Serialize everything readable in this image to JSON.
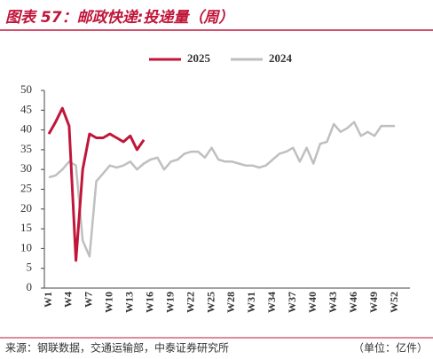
{
  "chart_data": {
    "type": "line",
    "title": "图表 57：邮政快递:投递量（周）",
    "categories": [
      "W1",
      null,
      null,
      "W4",
      null,
      null,
      "W7",
      null,
      null,
      "W10",
      null,
      null,
      "W13",
      null,
      null,
      "W16",
      null,
      null,
      "W19",
      null,
      null,
      "W22",
      null,
      null,
      "W25",
      null,
      null,
      "W28",
      null,
      null,
      "W31",
      null,
      null,
      "W34",
      null,
      null,
      "W37",
      null,
      null,
      "W40",
      null,
      null,
      "W43",
      null,
      null,
      "W46",
      null,
      null,
      "W49",
      null,
      null,
      "W52"
    ],
    "series": [
      {
        "name": "2025",
        "color": "#c0163a",
        "values": [
          39,
          42,
          45.5,
          41,
          7,
          30,
          39,
          38,
          38,
          39,
          38,
          37,
          38.5,
          35,
          37.5,
          null,
          null,
          null,
          null,
          null,
          null,
          null,
          null,
          null,
          null,
          null,
          null,
          null,
          null,
          null,
          null,
          null,
          null,
          null,
          null,
          null,
          null,
          null,
          null,
          null,
          null,
          null,
          null,
          null,
          null,
          null,
          null,
          null,
          null,
          null,
          null,
          null
        ]
      },
      {
        "name": "2024",
        "color": "#bfbfbf",
        "values": [
          28,
          28.5,
          30,
          32,
          31,
          12,
          8,
          27,
          29,
          31,
          30.5,
          31,
          32,
          30,
          31.5,
          32.5,
          33,
          30,
          32,
          32.5,
          34,
          34.5,
          34.5,
          33,
          35.5,
          32.5,
          32,
          32,
          31.5,
          31,
          31,
          30.5,
          31,
          32.5,
          34,
          34.5,
          35.5,
          32,
          35.5,
          31.5,
          36.5,
          37,
          41.5,
          39.5,
          40.5,
          42,
          38.5,
          39.5,
          38.5,
          41,
          41,
          41
        ]
      }
    ],
    "ylim": [
      0,
      50
    ],
    "yticks": [
      0,
      5,
      10,
      15,
      20,
      25,
      30,
      35,
      40,
      45,
      50
    ],
    "grid": false,
    "legend": "top",
    "source": "来源：钢联数据，交通运输部，中泰证券研究所",
    "unit": "（单位：亿件）"
  }
}
